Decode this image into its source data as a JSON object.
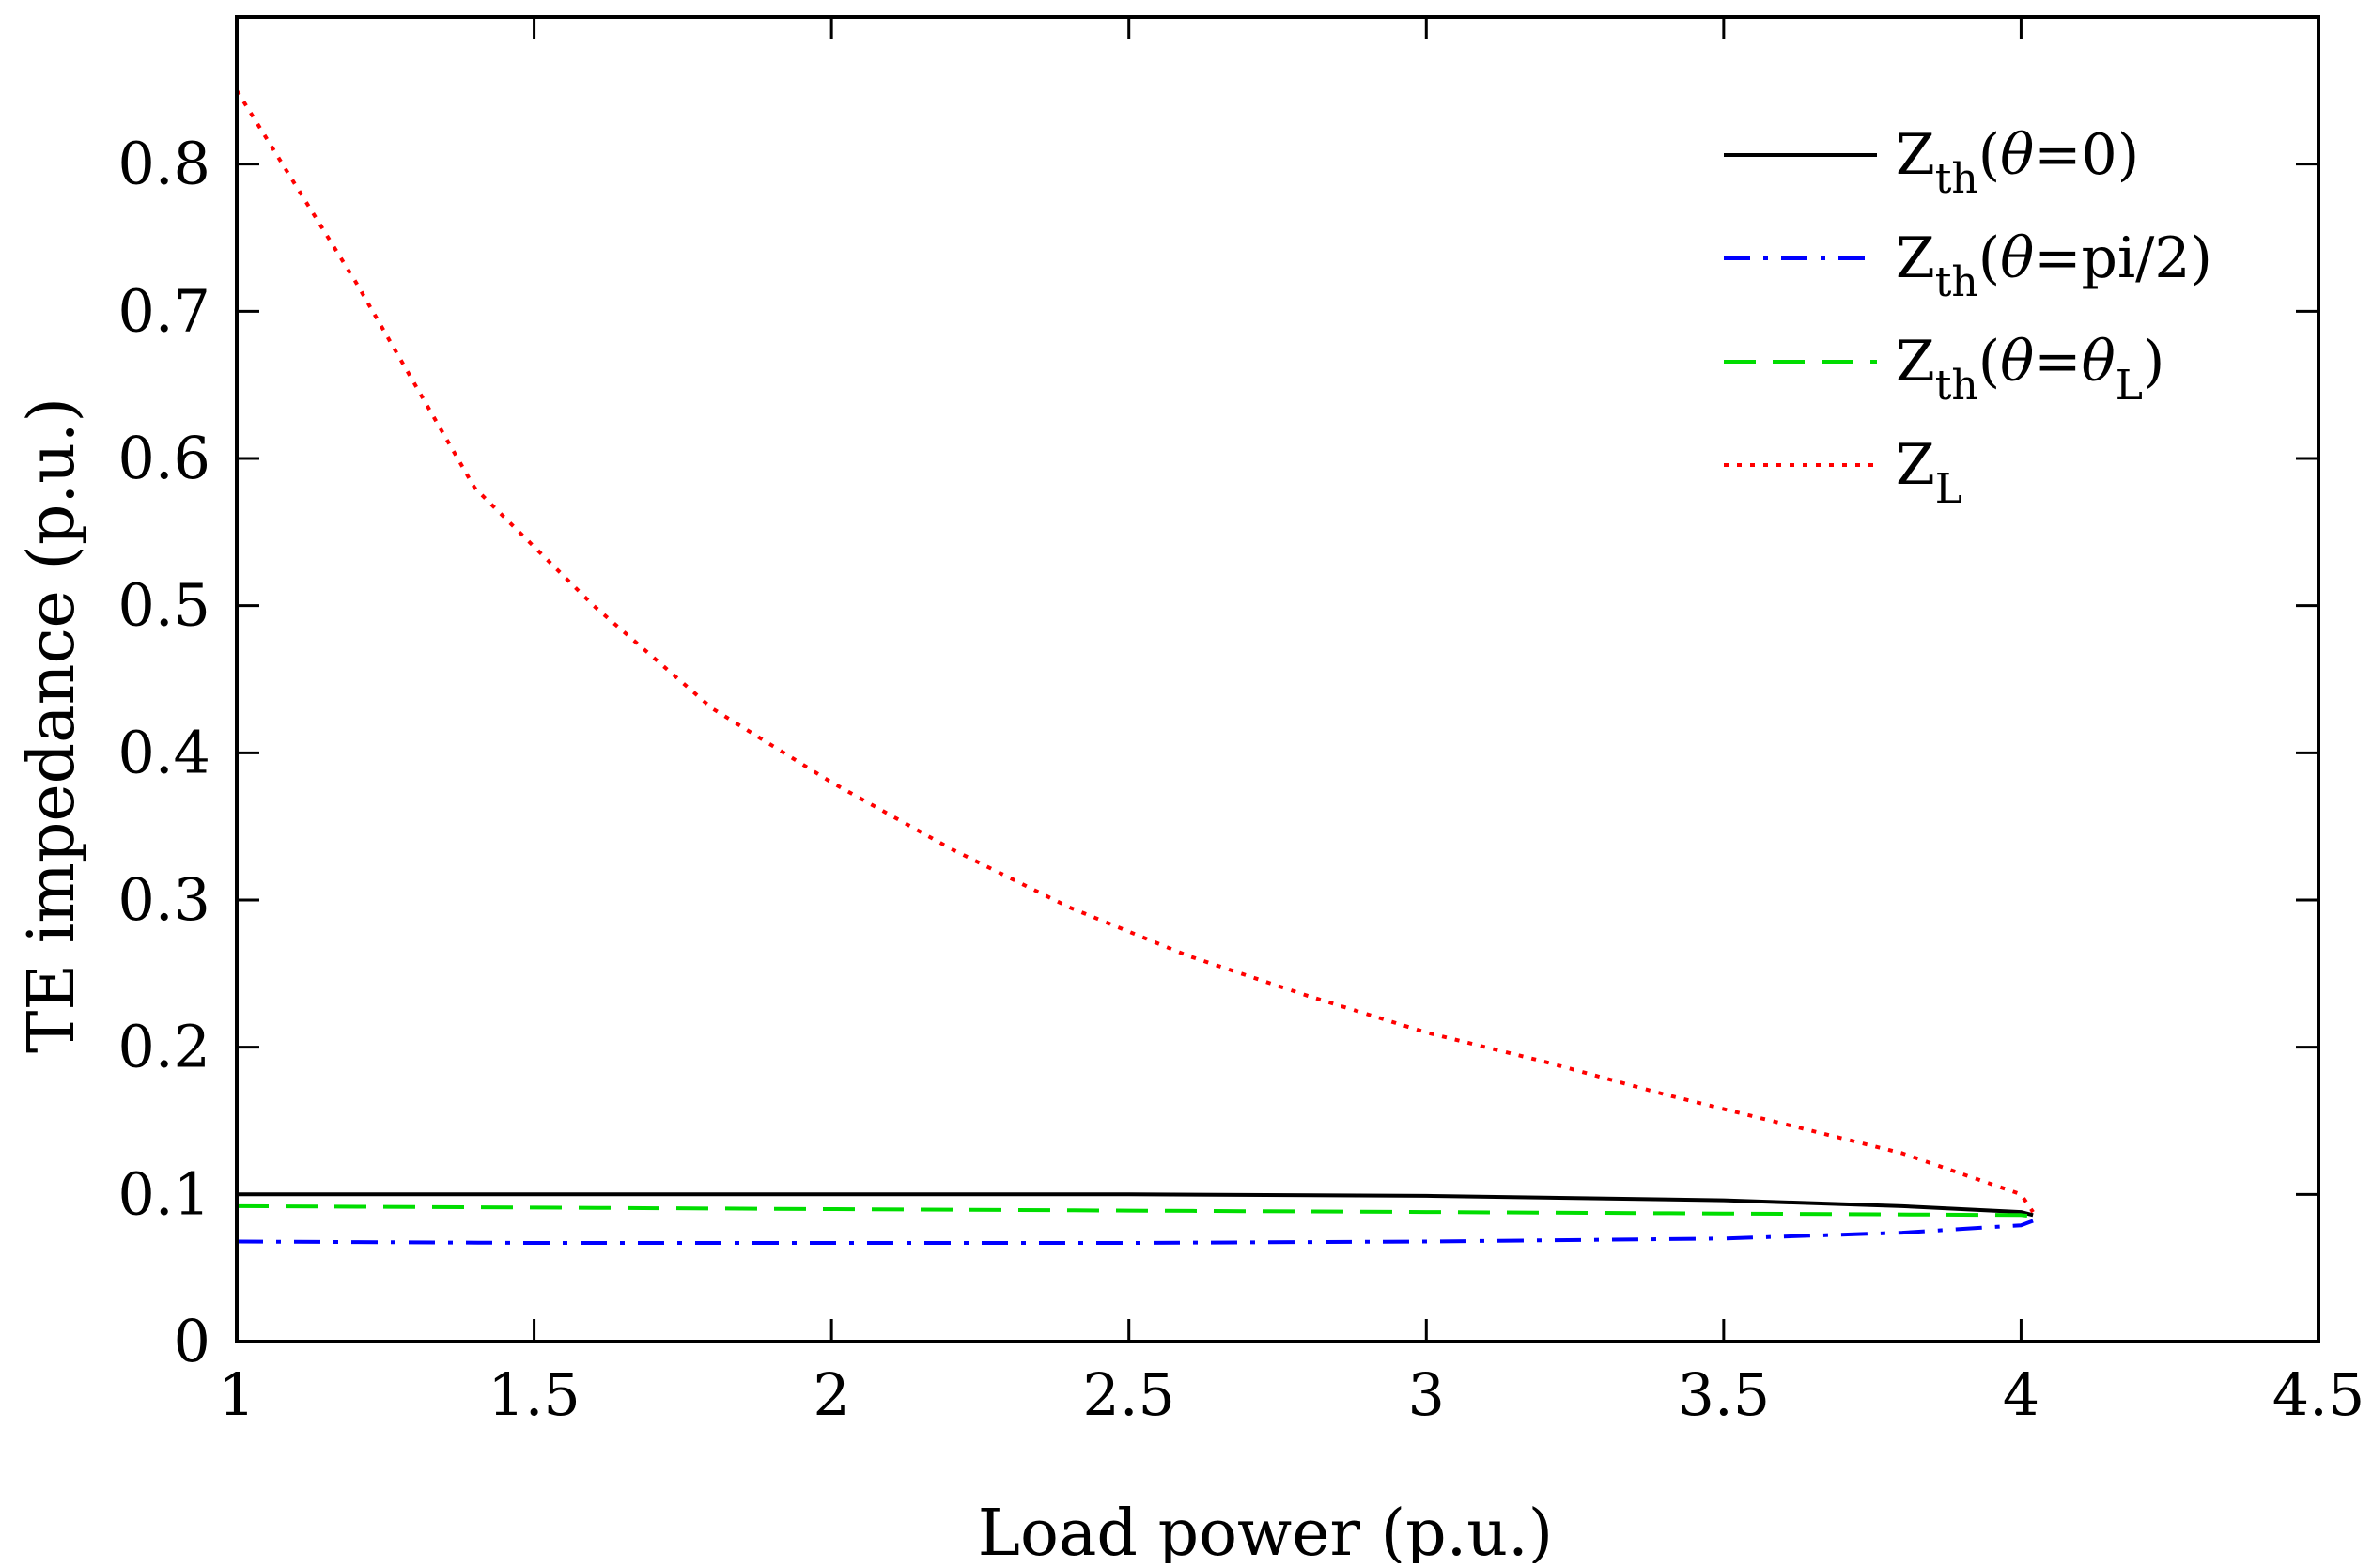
{
  "chart_data": {
    "type": "line",
    "title": "",
    "xlabel": "Load power (p.u.)",
    "ylabel": "TE impedance (p.u.)",
    "xlim": [
      1,
      4.5
    ],
    "ylim": [
      0,
      0.9
    ],
    "xticks": [
      1,
      1.5,
      2,
      2.5,
      3,
      3.5,
      4,
      4.5
    ],
    "xtick_labels": [
      "1",
      "1.5",
      "2",
      "2.5",
      "3",
      "3.5",
      "4",
      "4.5"
    ],
    "yticks": [
      0,
      0.1,
      0.2,
      0.3,
      0.4,
      0.5,
      0.6,
      0.7,
      0.8
    ],
    "ytick_labels": [
      "0",
      "0.1",
      "0.2",
      "0.3",
      "0.4",
      "0.5",
      "0.6",
      "0.7",
      "0.8"
    ],
    "grid": false,
    "legend_position": "top-right",
    "series": [
      {
        "name": "Z_th(θ=0)",
        "legend": {
          "main": "Z",
          "sub": "th",
          "pre": "(",
          "theta": "θ",
          "post": "=0)",
          "sub2": "",
          "end": ""
        },
        "color": "#000000",
        "style": "solid",
        "x": [
          1.0,
          1.5,
          2.0,
          2.5,
          3.0,
          3.5,
          3.8,
          4.0,
          4.02
        ],
        "y": [
          0.1,
          0.1,
          0.1,
          0.1,
          0.099,
          0.096,
          0.092,
          0.088,
          0.086
        ]
      },
      {
        "name": "Z_th(θ=pi/2)",
        "legend": {
          "main": "Z",
          "sub": "th",
          "pre": "(",
          "theta": "θ",
          "post": "=pi/2)",
          "sub2": "",
          "end": ""
        },
        "color": "#0000ff",
        "style": "dashdot",
        "x": [
          1.0,
          1.5,
          2.0,
          2.5,
          3.0,
          3.5,
          3.8,
          4.0,
          4.02
        ],
        "y": [
          0.068,
          0.067,
          0.067,
          0.067,
          0.068,
          0.07,
          0.074,
          0.079,
          0.082
        ]
      },
      {
        "name": "Z_th(θ=θ_L)",
        "legend": {
          "main": "Z",
          "sub": "th",
          "pre": "(",
          "theta": "θ",
          "post": "=",
          "theta2": "θ",
          "sub2": "L",
          "end": ")"
        },
        "color": "#00dd00",
        "style": "dashed",
        "x": [
          1.0,
          1.5,
          2.0,
          2.5,
          3.0,
          3.5,
          4.0,
          4.02
        ],
        "y": [
          0.092,
          0.091,
          0.09,
          0.089,
          0.088,
          0.087,
          0.086,
          0.085
        ]
      },
      {
        "name": "Z_L",
        "legend": {
          "main": "Z",
          "sub": "L",
          "pre": "",
          "theta": "",
          "post": "",
          "sub2": "",
          "end": ""
        },
        "color": "#ff0000",
        "style": "dotted",
        "x": [
          1.0,
          1.2,
          1.4,
          1.6,
          1.8,
          2.0,
          2.2,
          2.4,
          2.6,
          2.8,
          3.0,
          3.2,
          3.4,
          3.6,
          3.8,
          4.0,
          4.02
        ],
        "y": [
          0.85,
          0.72,
          0.58,
          0.5,
          0.43,
          0.38,
          0.335,
          0.295,
          0.262,
          0.235,
          0.21,
          0.19,
          0.168,
          0.148,
          0.128,
          0.1,
          0.088
        ]
      }
    ]
  }
}
